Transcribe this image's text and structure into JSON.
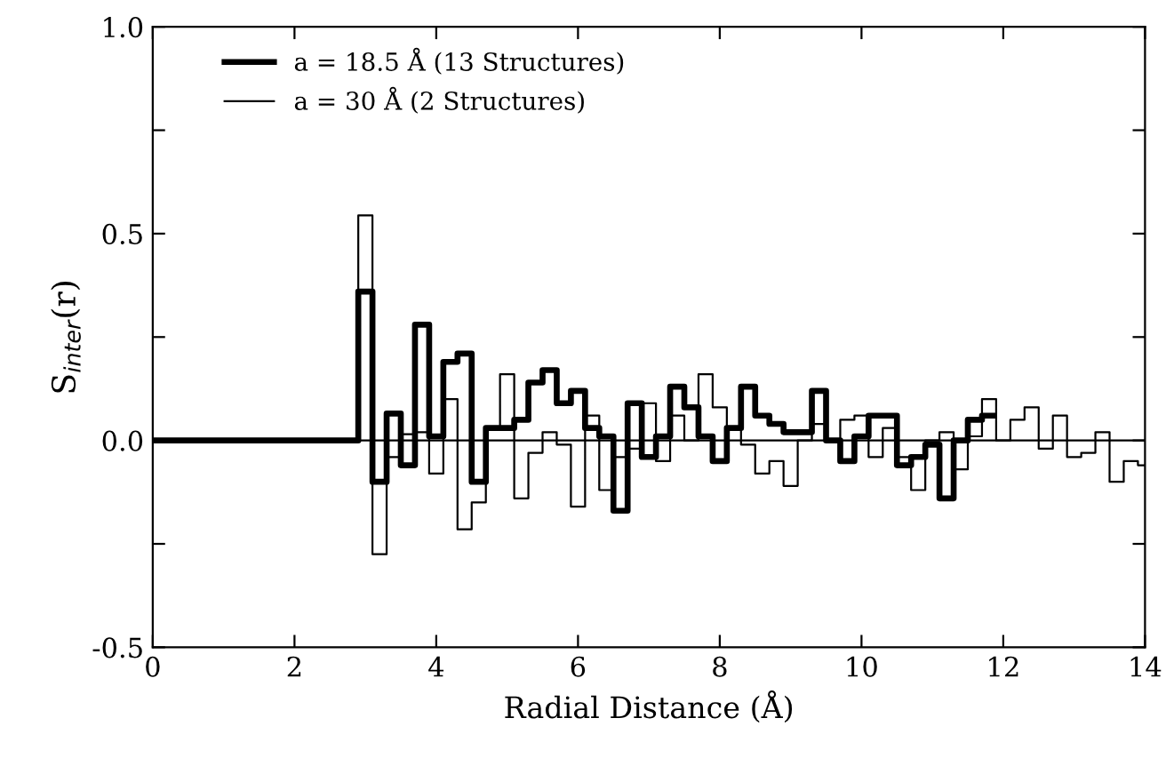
{
  "chart_data": {
    "type": "histogram",
    "xlabel": "Radial Distance (Å)",
    "ylabel": "S$_{inter}$(r)",
    "bins": [
      0,
      2.9,
      3.1,
      3.3,
      3.5,
      3.7,
      3.9,
      4.1,
      4.3,
      4.5,
      4.7,
      4.9,
      5.1,
      5.3,
      5.5,
      5.7,
      5.9,
      6.1,
      6.3,
      6.5,
      6.7,
      6.9,
      7.1,
      7.3,
      7.5,
      7.7,
      7.9,
      8.1,
      8.3,
      8.5,
      8.7,
      8.9,
      9.1,
      9.3,
      9.5,
      9.7,
      9.9,
      10.1,
      10.3,
      10.5,
      10.7,
      10.9,
      11.1,
      11.3,
      11.5,
      11.7,
      11.9,
      12.1,
      12.3,
      12.5,
      12.7,
      12.9,
      13.1,
      13.3,
      13.5,
      13.7,
      13.9,
      14.0
    ],
    "series": [
      {
        "name": "a = 18.5 Å (13 Structures)",
        "color": "#000000",
        "bins": [
          0,
          2.9,
          3.1,
          3.3,
          3.5,
          3.7,
          3.9,
          4.1,
          4.3,
          4.5,
          4.7,
          4.9,
          5.1,
          5.3,
          5.5,
          5.7,
          5.9,
          6.1,
          6.3,
          6.5,
          6.7,
          6.9,
          7.1,
          7.3,
          7.5,
          7.7,
          7.9,
          8.1,
          8.3,
          8.5,
          8.7,
          8.9,
          9.1,
          9.3,
          9.5,
          9.7,
          9.9,
          10.1,
          10.3,
          10.5,
          10.7,
          10.9,
          11.1,
          11.3,
          11.5,
          11.7,
          11.9
        ],
        "values": [
          0,
          0.36,
          -0.1,
          0.065,
          -0.06,
          0.28,
          0.01,
          0.19,
          0.21,
          -0.1,
          0.03,
          0.03,
          0.05,
          0.14,
          0.17,
          0.09,
          0.12,
          0.03,
          0.01,
          -0.17,
          0.09,
          -0.04,
          0.01,
          0.13,
          0.08,
          0.01,
          -0.05,
          0.03,
          0.13,
          0.06,
          0.04,
          0.02,
          0.02,
          0.12,
          0.0,
          -0.05,
          0.01,
          0.06,
          0.06,
          -0.06,
          -0.04,
          -0.01,
          -0.14,
          0.0,
          0.05,
          0.06
        ]
      },
      {
        "name": "a = 30 Å (2 Structures)",
        "color": "#000000",
        "values": [
          0,
          0.544,
          -0.275,
          -0.04,
          0.015,
          0.02,
          -0.08,
          0.1,
          -0.215,
          -0.15,
          0.03,
          0.16,
          -0.14,
          -0.03,
          0.02,
          -0.01,
          -0.16,
          0.06,
          -0.12,
          -0.04,
          -0.02,
          0.09,
          -0.05,
          0.06,
          0.0,
          0.16,
          0.08,
          0.03,
          -0.01,
          -0.08,
          -0.05,
          -0.11,
          0.0,
          0.04,
          0.0,
          0.05,
          0.06,
          -0.04,
          0.03,
          -0.04,
          -0.12,
          0.0,
          0.02,
          -0.07,
          0.01,
          0.1,
          0.0,
          0.05,
          0.08,
          -0.02,
          0.06,
          -0.04,
          -0.03,
          0.02,
          -0.1,
          -0.05,
          -0.06
        ]
      }
    ],
    "xlim": [
      0,
      14
    ],
    "xticks": [
      0,
      2,
      4,
      6,
      8,
      10,
      12,
      14
    ],
    "ylim": [
      -0.5,
      1.0
    ],
    "yticks": [
      {
        "value": -0.5,
        "label": "-0.5"
      },
      {
        "value": -0.25,
        "label": null
      },
      {
        "value": 0,
        "label": "0.0"
      },
      {
        "value": 0.25,
        "label": null
      },
      {
        "value": 0.5,
        "label": "0.5"
      },
      {
        "value": 0.75,
        "label": null
      },
      {
        "value": 1.0,
        "label": "1.0"
      }
    ],
    "ref_lines": [
      {
        "axis": "y",
        "value": 0,
        "color": "#000000"
      }
    ],
    "legend": "top left",
    "grid": false
  }
}
